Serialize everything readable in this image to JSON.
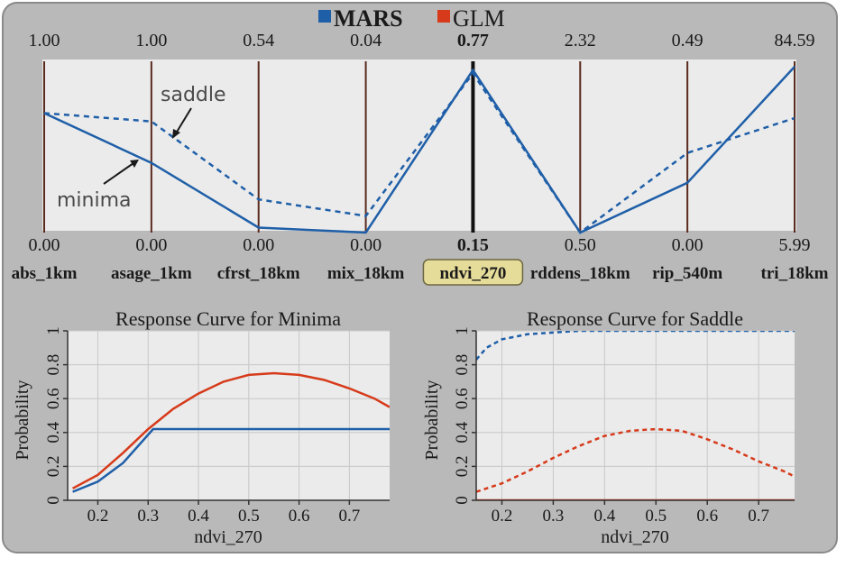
{
  "colors": {
    "panel_bg": "#b9b9b9",
    "plot_bg": "#ebebeb",
    "mars": "#1f5fa8",
    "glm": "#d63a1a",
    "axis_line": "#5a2a1e",
    "highlight_fill": "#e6dc9a"
  },
  "legend": {
    "mars_label": "MARS",
    "glm_label": "GLM"
  },
  "annotations": {
    "saddle": "saddle",
    "minima": "minima"
  },
  "chart_data": [
    {
      "type": "parallel_coordinates",
      "axes": [
        {
          "name": "abs_1km",
          "max": "1.00",
          "min": "0.00"
        },
        {
          "name": "asage_1km",
          "max": "1.00",
          "min": "0.00"
        },
        {
          "name": "cfrst_18km",
          "max": "0.54",
          "min": "0.00"
        },
        {
          "name": "mix_18km",
          "max": "0.04",
          "min": "0.00"
        },
        {
          "name": "ndvi_270",
          "max": "0.77",
          "min": "0.15",
          "highlighted": true
        },
        {
          "name": "rddens_18km",
          "max": "2.32",
          "min": "0.50"
        },
        {
          "name": "rip_540m",
          "max": "0.49",
          "min": "0.00"
        },
        {
          "name": "tri_18km",
          "max": "84.59",
          "min": "5.99"
        }
      ],
      "series": [
        {
          "name": "minima",
          "style": "solid",
          "values": [
            0.72,
            0.42,
            0.03,
            0.0,
            0.98,
            0.0,
            0.3,
            1.0
          ]
        },
        {
          "name": "saddle",
          "style": "dashed",
          "values": [
            0.72,
            0.67,
            0.2,
            0.1,
            0.96,
            0.0,
            0.48,
            0.69
          ]
        }
      ]
    },
    {
      "type": "line",
      "title": "Response Curve  for Minima",
      "xlabel": "ndvi_270",
      "ylabel": "Probability",
      "xlim": [
        0.14,
        0.78
      ],
      "ylim": [
        0,
        1
      ],
      "xticks": [
        "0.2",
        "0.3",
        "0.4",
        "0.5",
        "0.6",
        "0.7"
      ],
      "yticks": [
        "0",
        "0.2",
        "0.4",
        "0.6",
        "0.8",
        "1"
      ],
      "series": [
        {
          "model": "GLM",
          "style": "solid",
          "x": [
            0.15,
            0.2,
            0.25,
            0.3,
            0.35,
            0.4,
            0.45,
            0.5,
            0.55,
            0.6,
            0.65,
            0.7,
            0.75,
            0.78
          ],
          "y": [
            0.07,
            0.15,
            0.28,
            0.42,
            0.54,
            0.63,
            0.7,
            0.74,
            0.75,
            0.74,
            0.71,
            0.66,
            0.6,
            0.55
          ]
        },
        {
          "model": "MARS",
          "style": "solid",
          "x": [
            0.15,
            0.2,
            0.25,
            0.31,
            0.4,
            0.5,
            0.6,
            0.7,
            0.78
          ],
          "y": [
            0.05,
            0.11,
            0.22,
            0.42,
            0.42,
            0.42,
            0.42,
            0.42,
            0.42
          ]
        }
      ]
    },
    {
      "type": "line",
      "title": "Response Curve  for Saddle",
      "xlabel": "ndvi_270",
      "ylabel": "Probability",
      "xlim": [
        0.15,
        0.77
      ],
      "ylim": [
        0,
        1
      ],
      "xticks": [
        "0.2",
        "0.3",
        "0.4",
        "0.5",
        "0.6",
        "0.7"
      ],
      "yticks": [
        "0",
        "0.2",
        "0.4",
        "0.6",
        "0.8",
        "1"
      ],
      "series": [
        {
          "model": "MARS",
          "style": "dashed",
          "x": [
            0.15,
            0.17,
            0.2,
            0.25,
            0.3,
            0.35,
            0.4,
            0.5,
            0.6,
            0.7,
            0.77
          ],
          "y": [
            0.83,
            0.9,
            0.95,
            0.98,
            0.99,
            1.0,
            1.0,
            1.0,
            1.0,
            1.0,
            1.0
          ]
        },
        {
          "model": "GLM",
          "style": "dashed",
          "x": [
            0.15,
            0.2,
            0.25,
            0.3,
            0.35,
            0.4,
            0.45,
            0.5,
            0.55,
            0.6,
            0.65,
            0.7,
            0.75,
            0.77
          ],
          "y": [
            0.05,
            0.1,
            0.17,
            0.25,
            0.32,
            0.38,
            0.41,
            0.42,
            0.41,
            0.36,
            0.3,
            0.23,
            0.17,
            0.14
          ]
        },
        {
          "model": "GLM",
          "style": "solid",
          "x": [
            0.15,
            0.77
          ],
          "y": [
            0.0,
            0.0
          ]
        }
      ]
    }
  ]
}
